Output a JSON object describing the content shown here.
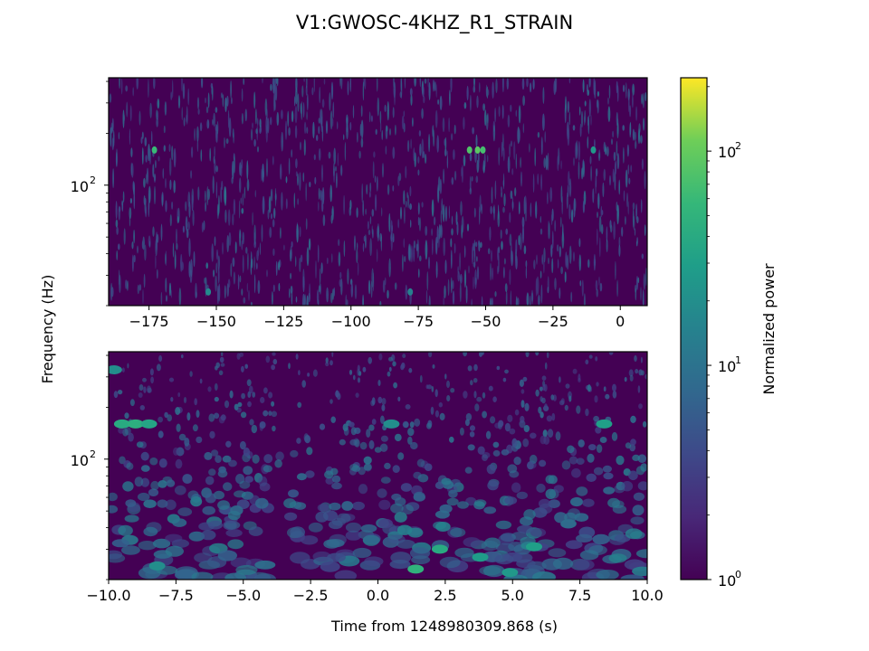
{
  "figure": {
    "title": "V1:GWOSC-4KHZ_R1_STRAIN",
    "ylabel": "Frequency (Hz)",
    "xlabel": "Time from 1248980309.868 (s)"
  },
  "colorbar": {
    "label": "Normalized power",
    "scale": "log",
    "range": [
      1,
      220
    ],
    "colormap": "viridis",
    "tick_labels": [
      {
        "base": "10",
        "exp": "2",
        "value": 100
      },
      {
        "base": "10",
        "exp": "1",
        "value": 10
      },
      {
        "base": "10",
        "exp": "0",
        "value": 1
      }
    ]
  },
  "chart_data": [
    {
      "type": "heatmap",
      "panel": "top",
      "x_range": [
        -190,
        10
      ],
      "y_scale": "log",
      "y_range": [
        20,
        420
      ],
      "x_tick_labels": [
        "−175",
        "−150",
        "−125",
        "−100",
        "−75",
        "−50",
        "−25",
        "0"
      ],
      "x_tick_values": [
        -175,
        -150,
        -125,
        -100,
        -75,
        -50,
        -25,
        0
      ],
      "y_tick_labels": [
        {
          "base": "10",
          "exp": "2",
          "value": 100
        }
      ],
      "hot_spots": [
        {
          "t": -173,
          "f": 160,
          "power": 60
        },
        {
          "t": -56,
          "f": 160,
          "power": 80
        },
        {
          "t": -53,
          "f": 160,
          "power": 90
        },
        {
          "t": -51,
          "f": 160,
          "power": 70
        },
        {
          "t": -10,
          "f": 160,
          "power": 25
        },
        {
          "t": -153,
          "f": 24,
          "power": 18
        },
        {
          "t": -78,
          "f": 24,
          "power": 14
        }
      ]
    },
    {
      "type": "heatmap",
      "panel": "bottom",
      "x_range": [
        -10,
        10
      ],
      "y_scale": "log",
      "y_range": [
        20,
        420
      ],
      "x_tick_labels": [
        "−10.0",
        "−7.5",
        "−5.0",
        "−2.5",
        "0.0",
        "2.5",
        "5.0",
        "7.5",
        "10.0"
      ],
      "x_tick_values": [
        -10,
        -7.5,
        -5,
        -2.5,
        0,
        2.5,
        5,
        7.5,
        10
      ],
      "y_tick_labels": [
        {
          "base": "10",
          "exp": "2",
          "value": 100
        }
      ],
      "hot_spots": [
        {
          "t": -9.5,
          "f": 160,
          "power": 40
        },
        {
          "t": -9.0,
          "f": 160,
          "power": 45
        },
        {
          "t": -8.5,
          "f": 160,
          "power": 35
        },
        {
          "t": 0.5,
          "f": 160,
          "power": 20
        },
        {
          "t": 8.4,
          "f": 160,
          "power": 30
        },
        {
          "t": -9.8,
          "f": 330,
          "power": 20
        },
        {
          "t": 1.4,
          "f": 23,
          "power": 50
        },
        {
          "t": 2.3,
          "f": 30,
          "power": 40
        },
        {
          "t": 3.8,
          "f": 27,
          "power": 28
        },
        {
          "t": 5.8,
          "f": 31,
          "power": 30
        },
        {
          "t": 4.9,
          "f": 22,
          "power": 25
        },
        {
          "t": -8.2,
          "f": 24,
          "power": 20
        }
      ]
    }
  ]
}
